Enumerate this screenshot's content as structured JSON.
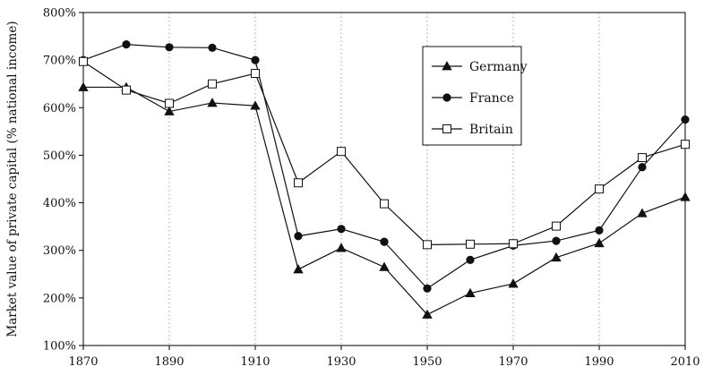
{
  "chart_data": {
    "type": "line",
    "x": [
      1870,
      1880,
      1890,
      1900,
      1910,
      1920,
      1930,
      1940,
      1950,
      1960,
      1970,
      1980,
      1990,
      2000,
      2010
    ],
    "series": [
      {
        "name": "Germany",
        "marker": "triangle",
        "values": [
          643,
          643,
          592,
          610,
          604,
          260,
          305,
          265,
          165,
          210,
          230,
          285,
          315,
          378,
          412
        ]
      },
      {
        "name": "France",
        "marker": "circle",
        "values": [
          700,
          733,
          727,
          726,
          700,
          330,
          345,
          318,
          220,
          280,
          310,
          320,
          342,
          475,
          575
        ]
      },
      {
        "name": "Britain",
        "marker": "square",
        "values": [
          697,
          637,
          609,
          650,
          672,
          442,
          508,
          398,
          312,
          313,
          314,
          351,
          429,
          495,
          523
        ]
      }
    ],
    "xlim": [
      1870,
      2010
    ],
    "ylim": [
      100,
      800
    ],
    "xticks": [
      1870,
      1890,
      1910,
      1930,
      1950,
      1970,
      1990,
      2010
    ],
    "xtick_labels": [
      "1870",
      "1890",
      "1910",
      "1930",
      "1950",
      "1970",
      "1990",
      "2010"
    ],
    "yticks": [
      100,
      200,
      300,
      400,
      500,
      600,
      700,
      800
    ],
    "ytick_labels": [
      "100%",
      "200%",
      "300%",
      "400%",
      "500%",
      "600%",
      "700%",
      "800%"
    ],
    "ylabel": "Market value of private capital (% national income)",
    "xlabel": "",
    "title": "",
    "grid": "vertical dotted gridlines",
    "legend_position": "top-right"
  }
}
